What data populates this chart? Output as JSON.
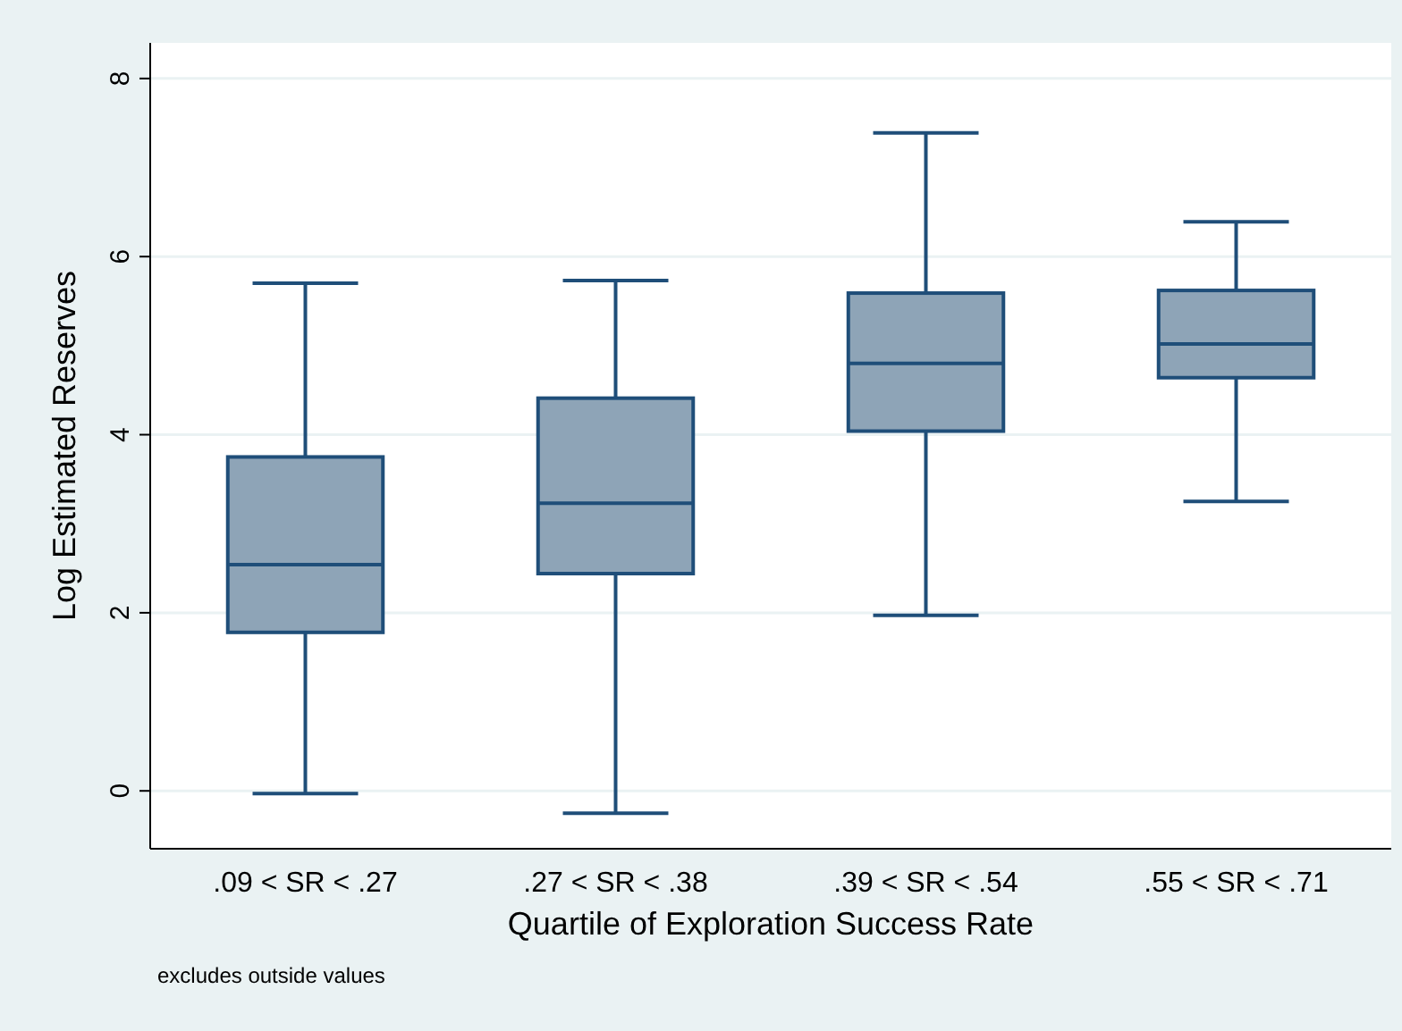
{
  "chart_data": {
    "type": "box",
    "xlabel": "Quartile of Exploration Success Rate",
    "ylabel": "Log Estimated Reserves",
    "categories": [
      ".09 < SR < .27",
      ".27 < SR < .38",
      ".39 < SR < .54",
      ".55 < SR < .71"
    ],
    "boxes": [
      {
        "low": -0.03,
        "q1": 1.78,
        "median": 2.54,
        "q3": 3.75,
        "high": 5.7
      },
      {
        "low": -0.25,
        "q1": 2.44,
        "median": 3.23,
        "q3": 4.41,
        "high": 5.73
      },
      {
        "low": 1.97,
        "q1": 4.04,
        "median": 4.8,
        "q3": 5.59,
        "high": 7.39
      },
      {
        "low": 3.25,
        "q1": 4.64,
        "median": 5.02,
        "q3": 5.62,
        "high": 6.39
      }
    ],
    "color": "#8ea4b7",
    "ylim": [
      -0.65,
      8.4
    ],
    "yticks": [
      0,
      2,
      4,
      6,
      8
    ],
    "grid": "y",
    "annotations": [
      "excludes outside values"
    ]
  }
}
